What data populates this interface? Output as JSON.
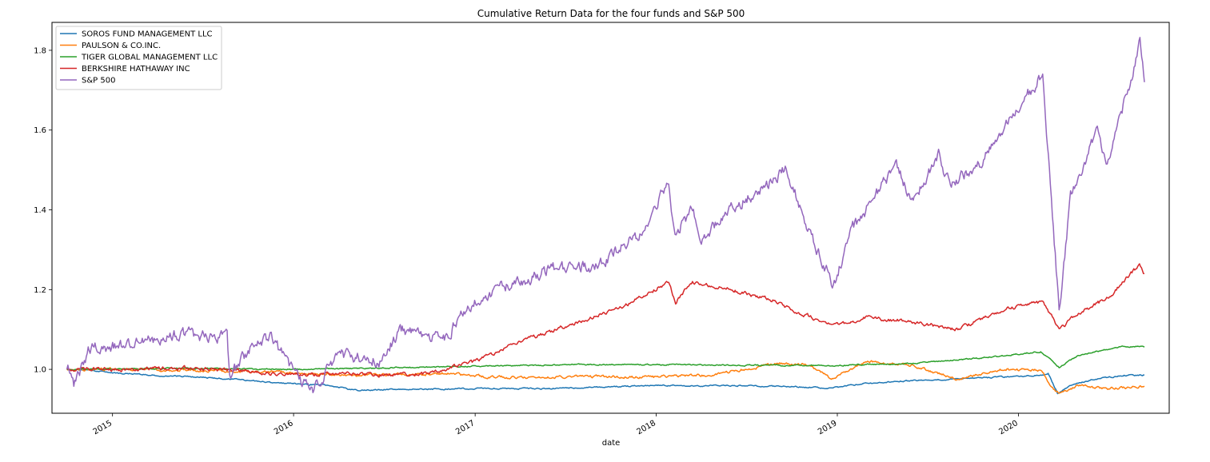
{
  "chart_data": {
    "type": "line",
    "title": "Cumulative Return Data for the four funds and S&P 500",
    "xlabel": "date",
    "ylabel": "",
    "x_ticks": [
      "2015",
      "2016",
      "2017",
      "2018",
      "2019",
      "2020"
    ],
    "y_ticks": [
      "1.0",
      "1.2",
      "1.4",
      "1.6",
      "1.8"
    ],
    "xlim": [
      "2014-09-01",
      "2020-10-31"
    ],
    "ylim": [
      0.89,
      1.87
    ],
    "grid": false,
    "legend_position": "upper-left",
    "series": [
      {
        "name": "SOROS FUND MANAGEMENT LLC",
        "color": "#1f77b4",
        "points": [
          [
            "2014-10-01",
            1.0
          ],
          [
            "2014-11-15",
            0.998
          ],
          [
            "2015-01-15",
            0.99
          ],
          [
            "2015-04-01",
            0.985
          ],
          [
            "2015-06-01",
            0.982
          ],
          [
            "2015-09-01",
            0.975
          ],
          [
            "2015-12-15",
            0.965
          ],
          [
            "2016-03-15",
            0.96
          ],
          [
            "2016-05-01",
            0.948
          ],
          [
            "2016-09-01",
            0.95
          ],
          [
            "2017-01-01",
            0.952
          ],
          [
            "2017-06-01",
            0.952
          ],
          [
            "2018-01-01",
            0.96
          ],
          [
            "2018-09-01",
            0.958
          ],
          [
            "2018-12-20",
            0.953
          ],
          [
            "2019-03-01",
            0.965
          ],
          [
            "2019-06-01",
            0.972
          ],
          [
            "2019-10-01",
            0.978
          ],
          [
            "2020-02-15",
            0.985
          ],
          [
            "2020-03-01",
            0.99
          ],
          [
            "2020-03-20",
            0.94
          ],
          [
            "2020-04-15",
            0.96
          ],
          [
            "2020-06-01",
            0.975
          ],
          [
            "2020-08-01",
            0.985
          ],
          [
            "2020-09-11",
            0.986
          ]
        ]
      },
      {
        "name": "PAULSON & CO.INC.",
        "color": "#ff7f0e",
        "points": [
          [
            "2014-10-01",
            1.0
          ],
          [
            "2015-02-01",
            1.0
          ],
          [
            "2015-06-01",
            0.998
          ],
          [
            "2015-10-01",
            0.995
          ],
          [
            "2016-02-01",
            0.99
          ],
          [
            "2016-05-01",
            0.985
          ],
          [
            "2016-09-01",
            0.987
          ],
          [
            "2016-11-01",
            0.99
          ],
          [
            "2016-12-15",
            0.985
          ],
          [
            "2017-03-01",
            0.98
          ],
          [
            "2017-08-01",
            0.982
          ],
          [
            "2017-12-01",
            0.98
          ],
          [
            "2018-04-01",
            0.985
          ],
          [
            "2018-07-01",
            1.0
          ],
          [
            "2018-09-01",
            1.015
          ],
          [
            "2018-11-01",
            1.012
          ],
          [
            "2018-12-20",
            0.978
          ],
          [
            "2019-03-01",
            1.02
          ],
          [
            "2019-06-01",
            1.01
          ],
          [
            "2019-09-01",
            0.975
          ],
          [
            "2019-12-01",
            1.0
          ],
          [
            "2020-02-15",
            0.998
          ],
          [
            "2020-03-10",
            0.955
          ],
          [
            "2020-03-23",
            0.94
          ],
          [
            "2020-05-01",
            0.96
          ],
          [
            "2020-07-01",
            0.952
          ],
          [
            "2020-09-11",
            0.958
          ]
        ]
      },
      {
        "name": "TIGER GLOBAL MANAGEMENT LLC",
        "color": "#2ca02c",
        "points": [
          [
            "2014-10-01",
            1.0
          ],
          [
            "2015-06-01",
            1.003
          ],
          [
            "2016-01-01",
            1.0
          ],
          [
            "2016-06-01",
            1.003
          ],
          [
            "2017-01-01",
            1.008
          ],
          [
            "2017-07-01",
            1.012
          ],
          [
            "2018-01-01",
            1.012
          ],
          [
            "2018-08-01",
            1.01
          ],
          [
            "2019-01-01",
            1.01
          ],
          [
            "2019-06-01",
            1.015
          ],
          [
            "2019-11-01",
            1.03
          ],
          [
            "2020-02-15",
            1.045
          ],
          [
            "2020-03-23",
            1.005
          ],
          [
            "2020-05-01",
            1.035
          ],
          [
            "2020-08-01",
            1.058
          ],
          [
            "2020-09-11",
            1.056
          ]
        ]
      },
      {
        "name": "BERKSHIRE HATHAWAY INC",
        "color": "#d62728",
        "points": [
          [
            "2014-10-01",
            1.0
          ],
          [
            "2015-01-01",
            1.0
          ],
          [
            "2015-06-01",
            1.003
          ],
          [
            "2015-09-01",
            0.998
          ],
          [
            "2016-01-15",
            0.985
          ],
          [
            "2016-04-01",
            0.99
          ],
          [
            "2016-07-01",
            0.985
          ],
          [
            "2016-10-01",
            0.99
          ],
          [
            "2017-01-01",
            1.02
          ],
          [
            "2017-04-01",
            1.07
          ],
          [
            "2017-08-01",
            1.12
          ],
          [
            "2017-11-01",
            1.16
          ],
          [
            "2018-01-26",
            1.22
          ],
          [
            "2018-02-09",
            1.17
          ],
          [
            "2018-03-15",
            1.22
          ],
          [
            "2018-06-01",
            1.2
          ],
          [
            "2018-09-01",
            1.17
          ],
          [
            "2018-10-01",
            1.15
          ],
          [
            "2018-12-24",
            1.11
          ],
          [
            "2019-03-01",
            1.13
          ],
          [
            "2019-06-01",
            1.12
          ],
          [
            "2019-09-01",
            1.1
          ],
          [
            "2019-12-01",
            1.15
          ],
          [
            "2020-02-19",
            1.17
          ],
          [
            "2020-03-23",
            1.1
          ],
          [
            "2020-05-01",
            1.14
          ],
          [
            "2020-07-01",
            1.18
          ],
          [
            "2020-08-15",
            1.24
          ],
          [
            "2020-09-01",
            1.26
          ],
          [
            "2020-09-11",
            1.24
          ]
        ]
      },
      {
        "name": "S&P 500",
        "color": "#9467bd",
        "points": [
          [
            "2014-10-01",
            1.0
          ],
          [
            "2014-10-15",
            0.96
          ],
          [
            "2014-11-15",
            1.05
          ],
          [
            "2015-01-15",
            1.06
          ],
          [
            "2015-05-15",
            1.09
          ],
          [
            "2015-08-20",
            1.08
          ],
          [
            "2015-08-25",
            0.98
          ],
          [
            "2015-10-15",
            1.07
          ],
          [
            "2015-11-15",
            1.08
          ],
          [
            "2016-01-20",
            0.96
          ],
          [
            "2016-02-11",
            0.95
          ],
          [
            "2016-04-01",
            1.04
          ],
          [
            "2016-06-27",
            1.02
          ],
          [
            "2016-08-01",
            1.1
          ],
          [
            "2016-11-04",
            1.08
          ],
          [
            "2016-12-15",
            1.16
          ],
          [
            "2017-03-01",
            1.21
          ],
          [
            "2017-06-01",
            1.25
          ],
          [
            "2017-09-01",
            1.26
          ],
          [
            "2017-12-01",
            1.34
          ],
          [
            "2018-01-26",
            1.47
          ],
          [
            "2018-02-08",
            1.34
          ],
          [
            "2018-03-15",
            1.4
          ],
          [
            "2018-04-02",
            1.33
          ],
          [
            "2018-06-01",
            1.4
          ],
          [
            "2018-09-20",
            1.5
          ],
          [
            "2018-10-25",
            1.38
          ],
          [
            "2018-12-24",
            1.21
          ],
          [
            "2019-02-01",
            1.35
          ],
          [
            "2019-04-30",
            1.51
          ],
          [
            "2019-06-03",
            1.42
          ],
          [
            "2019-07-26",
            1.54
          ],
          [
            "2019-08-15",
            1.46
          ],
          [
            "2019-10-15",
            1.52
          ],
          [
            "2019-12-31",
            1.65
          ],
          [
            "2020-02-19",
            1.74
          ],
          [
            "2020-03-23",
            1.15
          ],
          [
            "2020-04-15",
            1.43
          ],
          [
            "2020-06-08",
            1.6
          ],
          [
            "2020-06-26",
            1.52
          ],
          [
            "2020-08-15",
            1.72
          ],
          [
            "2020-09-02",
            1.84
          ],
          [
            "2020-09-11",
            1.72
          ]
        ]
      }
    ]
  }
}
